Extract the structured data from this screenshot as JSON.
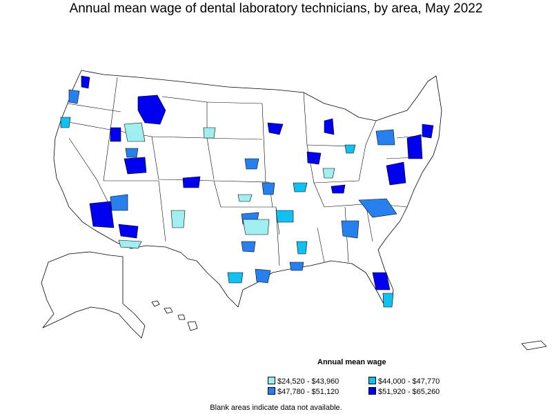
{
  "title": "Annual mean wage of dental laboratory technicians, by area, May 2022",
  "legend": {
    "title": "Annual mean wage",
    "items": [
      {
        "label": "$24,520 - $43,960",
        "color": "#a0eef0"
      },
      {
        "label": "$44,000 - $47,770",
        "color": "#10c0f0"
      },
      {
        "label": "$47,780 - $51,120",
        "color": "#2880ee"
      },
      {
        "label": "$51,920 - $65,260",
        "color": "#0000ee"
      }
    ]
  },
  "footnote": "Blank areas indicate data not available."
}
